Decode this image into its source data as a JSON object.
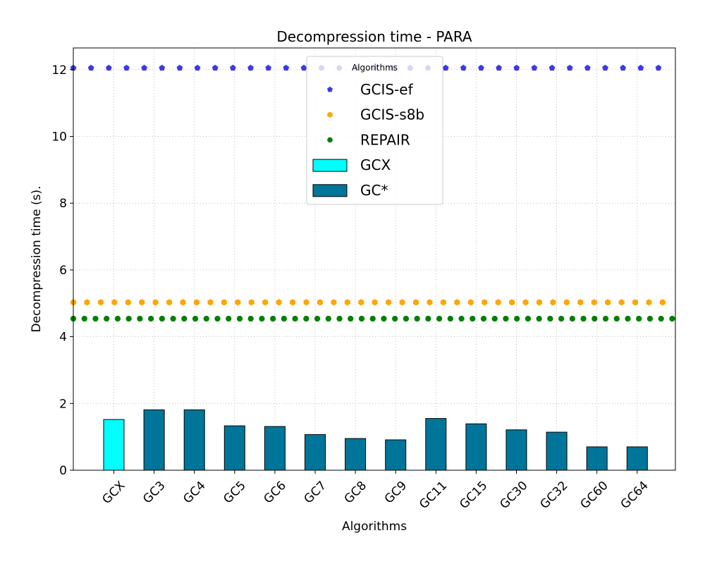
{
  "chart_data": {
    "type": "bar",
    "title": "Decompression time -  PARA",
    "xlabel": "Algorithms",
    "ylabel": "Decompression time (s).",
    "categories": [
      "GCX",
      "GC3",
      "GC4",
      "GC5",
      "GC6",
      "GC7",
      "GC8",
      "GC9",
      "GC11",
      "GC15",
      "GC30",
      "GC32",
      "GC60",
      "GC64"
    ],
    "ylim": [
      0,
      12.65
    ],
    "yticks": [
      0,
      2,
      4,
      6,
      8,
      10,
      12
    ],
    "grid": true,
    "legend": {
      "title": "Algorithms",
      "placement": "top-center"
    },
    "bar_series": [
      {
        "name": "GCX",
        "color": "#00ffff",
        "values": [
          1.52,
          null,
          null,
          null,
          null,
          null,
          null,
          null,
          null,
          null,
          null,
          null,
          null,
          null
        ]
      },
      {
        "name": "GC*",
        "color": "#00759a",
        "values": [
          null,
          1.81,
          1.81,
          1.33,
          1.31,
          1.07,
          0.95,
          0.91,
          1.55,
          1.39,
          1.21,
          1.14,
          0.7,
          0.7
        ]
      }
    ],
    "reference_lines": [
      {
        "name": "GCIS-ef",
        "value": 12.05,
        "color": "#3a3ae6",
        "marker": "pentagon"
      },
      {
        "name": "GCIS-s8b",
        "value": 5.03,
        "color": "#ffa500",
        "marker": "hexagon"
      },
      {
        "name": "REPAIR",
        "value": 4.54,
        "color": "#008000",
        "marker": "circle"
      }
    ],
    "legend_order": [
      "GCIS-ef",
      "GCIS-s8b",
      "REPAIR",
      "GCX",
      "GC*"
    ]
  }
}
